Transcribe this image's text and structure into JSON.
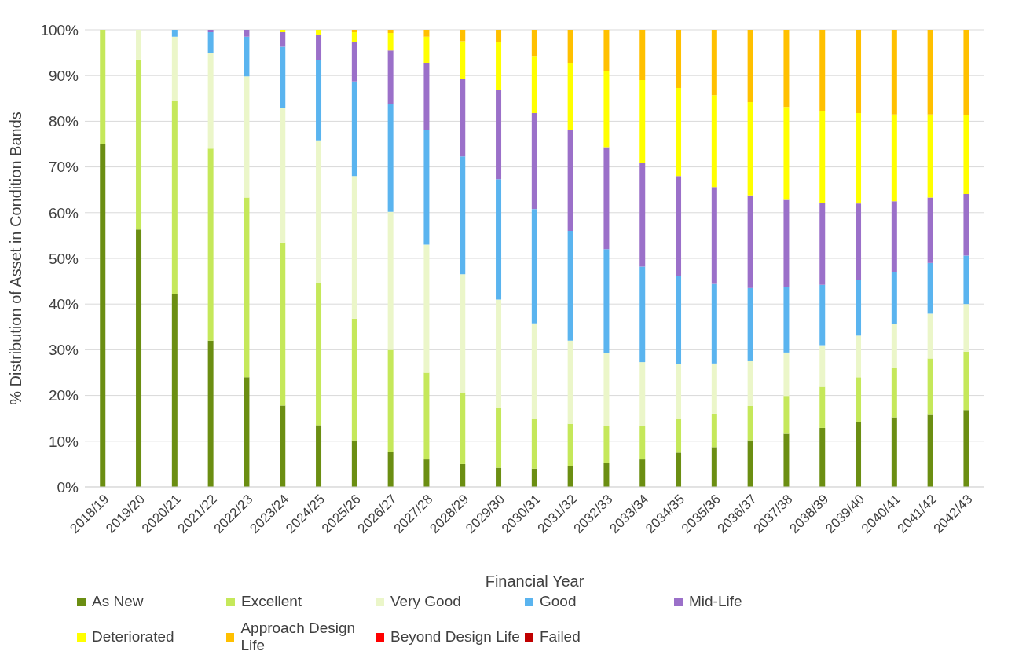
{
  "chart_data": {
    "type": "bar",
    "stacked": true,
    "xlabel": "Financial Year",
    "ylabel": "% Distribution of Asset in Condition Bands",
    "categories": [
      "2018/19",
      "2019/20",
      "2020/21",
      "2021/22",
      "2022/23",
      "2023/24",
      "2024/25",
      "2025/26",
      "2026/27",
      "2027/28",
      "2028/29",
      "2029/30",
      "2030/31",
      "2031/32",
      "2032/33",
      "2033/34",
      "2034/35",
      "2035/36",
      "2036/37",
      "2037/38",
      "2038/39",
      "2039/40",
      "2040/41",
      "2041/42",
      "2042/43"
    ],
    "series": [
      {
        "name": "As New",
        "color": "#6b8e12",
        "values": [
          75,
          56.3,
          42.2,
          32,
          24,
          17.8,
          13.5,
          10.2,
          7.6,
          6,
          5,
          4.2,
          4,
          4.5,
          5.3,
          6,
          7.5,
          8.7,
          10.2,
          11.6,
          12.9,
          14.1,
          15.2,
          15.9,
          16.8
        ]
      },
      {
        "name": "Excellent",
        "color": "#c5e85a",
        "values": [
          25,
          37.2,
          42.3,
          42,
          39.3,
          35.7,
          31,
          26.6,
          22.4,
          19,
          15.5,
          13.1,
          10.8,
          9.3,
          8,
          7.3,
          7.3,
          7.3,
          7.5,
          8.3,
          9,
          9.9,
          10.9,
          12.2,
          12.8
        ]
      },
      {
        "name": "Very Good",
        "color": "#ebf6c9",
        "values": [
          0,
          6.5,
          14,
          21,
          26.5,
          29.5,
          31.3,
          31.2,
          30.2,
          28,
          26,
          23.7,
          21,
          18.2,
          16,
          14,
          12,
          11,
          9.8,
          9.5,
          9.1,
          9.1,
          9.6,
          9.8,
          10.4
        ]
      },
      {
        "name": "Good",
        "color": "#5ab4ef",
        "values": [
          0,
          0,
          1.5,
          4.5,
          8.7,
          13.3,
          17.5,
          20.7,
          23.5,
          25,
          25.8,
          26.3,
          25,
          24,
          22.7,
          20.9,
          19.4,
          17.4,
          16,
          14.3,
          13.2,
          12.2,
          11.3,
          11.1,
          10.6
        ]
      },
      {
        "name": "Mid-Life",
        "color": "#9b70c9",
        "values": [
          0,
          0,
          0,
          0.5,
          1.5,
          3.2,
          5.5,
          8.6,
          11.8,
          14.8,
          17,
          19.5,
          21,
          22,
          22.3,
          22.6,
          21.8,
          21.2,
          20.3,
          19.1,
          18,
          16.7,
          15.5,
          14.3,
          13.5
        ]
      },
      {
        "name": "Deteriorated",
        "color": "#ffff00",
        "values": [
          0,
          0,
          0,
          0,
          0,
          0.5,
          1.2,
          2.2,
          3.8,
          5.7,
          8.2,
          10.5,
          12.5,
          14.8,
          16.7,
          18.2,
          19.3,
          20.1,
          20.4,
          20.3,
          20.1,
          19.8,
          19,
          18.2,
          17.3
        ]
      },
      {
        "name": "Approach Design Life",
        "color": "#ffc000",
        "values": [
          0,
          0,
          0,
          0,
          0,
          0,
          0,
          0.5,
          0.7,
          1.5,
          2.5,
          2.7,
          5.7,
          7.2,
          9,
          11,
          12.7,
          14.3,
          15.8,
          16.9,
          17.7,
          18.2,
          18.5,
          18.5,
          18.6
        ]
      },
      {
        "name": "Beyond Design Life",
        "color": "#ff0000",
        "values": [
          0,
          0,
          0,
          0,
          0,
          0,
          0,
          0,
          0,
          0,
          0,
          0,
          0,
          0,
          0,
          0,
          0,
          0,
          0,
          0,
          0,
          0,
          0,
          0,
          0
        ]
      },
      {
        "name": "Failed",
        "color": "#c00000",
        "values": [
          0,
          0,
          0,
          0,
          0,
          0,
          0,
          0,
          0,
          0,
          0,
          0,
          0,
          0,
          0,
          0,
          0,
          0,
          0,
          0,
          0,
          0,
          0,
          0,
          0
        ]
      }
    ],
    "ylim": [
      0,
      100
    ],
    "yticks": [
      {
        "value": 0,
        "label": "0%"
      },
      {
        "value": 10,
        "label": "10%"
      },
      {
        "value": 20,
        "label": "20%"
      },
      {
        "value": 30,
        "label": "30%"
      },
      {
        "value": 40,
        "label": "40%"
      },
      {
        "value": 50,
        "label": "50%"
      },
      {
        "value": 60,
        "label": "60%"
      },
      {
        "value": 70,
        "label": "70%"
      },
      {
        "value": 80,
        "label": "80%"
      },
      {
        "value": 90,
        "label": "90%"
      },
      {
        "value": 100,
        "label": "100%"
      }
    ],
    "grid": "y",
    "legend": "bottom"
  }
}
